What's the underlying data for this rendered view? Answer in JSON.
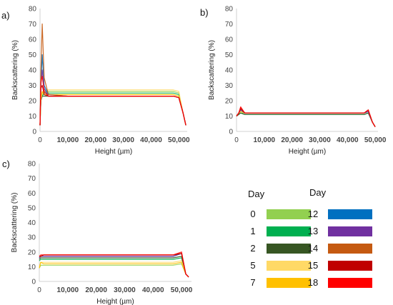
{
  "panels": [
    {
      "label": "a)",
      "ylabel": "Backscattering (%)",
      "xlabel": "Height (µm)"
    },
    {
      "label": "b)",
      "ylabel": "Backscattering (%)",
      "xlabel": "Height (µm)"
    },
    {
      "label": "c)",
      "ylabel": "Backscattering (%)",
      "xlabel": "Height (µm)"
    }
  ],
  "legend": {
    "header_left": "Day",
    "header_right": "Day",
    "entries": [
      {
        "day": "0",
        "color": "#92d050"
      },
      {
        "day": "1",
        "color": "#00b050"
      },
      {
        "day": "2",
        "color": "#375623"
      },
      {
        "day": "5",
        "color": "#ffd966"
      },
      {
        "day": "7",
        "color": "#ffc000"
      },
      {
        "day": "12",
        "color": "#0070c0"
      },
      {
        "day": "13",
        "color": "#7030a0"
      },
      {
        "day": "14",
        "color": "#c55a11"
      },
      {
        "day": "15",
        "color": "#c00000"
      },
      {
        "day": "18",
        "color": "#ff0000"
      }
    ]
  },
  "chart_data": [
    {
      "type": "line",
      "title": "a)",
      "xlabel": "Height (µm)",
      "ylabel": "Backscattering (%)",
      "xlim": [
        0,
        53000
      ],
      "ylim": [
        0,
        80
      ],
      "yticks": [
        0,
        10,
        20,
        30,
        40,
        50,
        60,
        70,
        80
      ],
      "xticks": [
        0,
        10000,
        20000,
        30000,
        40000,
        50000
      ],
      "xtick_labels": [
        "0",
        "10,000",
        "20,000",
        "30,000",
        "40,000",
        "50,000"
      ],
      "grid": false,
      "series": [
        {
          "name": "0",
          "color": "#92d050",
          "x": [
            0,
            300,
            800,
            1500,
            3000,
            10000,
            20000,
            30000,
            40000,
            48000,
            50000,
            51500,
            52500
          ],
          "y": [
            4,
            20,
            24,
            26,
            26,
            26,
            26,
            26,
            26,
            26,
            25,
            12,
            4
          ]
        },
        {
          "name": "1",
          "color": "#00b050",
          "x": [
            0,
            300,
            800,
            1500,
            3000,
            10000,
            20000,
            30000,
            40000,
            48000,
            50000,
            51500,
            52500
          ],
          "y": [
            4,
            20,
            23,
            25,
            25,
            25,
            25,
            25,
            25,
            25,
            24,
            12,
            4
          ]
        },
        {
          "name": "2",
          "color": "#375623",
          "x": [
            0,
            300,
            800,
            1500,
            3000,
            10000,
            20000,
            30000,
            40000,
            48000,
            50000,
            51500,
            52500
          ],
          "y": [
            4,
            20,
            23,
            23,
            23,
            23,
            23,
            23,
            23,
            23,
            22,
            12,
            4
          ]
        },
        {
          "name": "5",
          "color": "#ffd966",
          "x": [
            0,
            300,
            800,
            1500,
            3000,
            10000,
            20000,
            30000,
            40000,
            48000,
            50000,
            51500,
            52500
          ],
          "y": [
            4,
            20,
            25,
            27,
            27,
            27,
            27,
            27,
            27,
            27,
            26,
            12,
            4
          ]
        },
        {
          "name": "7",
          "color": "#ffc000",
          "x": [
            0,
            300,
            800,
            1500,
            3000,
            10000,
            20000,
            30000,
            40000,
            48000,
            50000,
            51500,
            52500
          ],
          "y": [
            4,
            22,
            26,
            24,
            24,
            24,
            24,
            24,
            24,
            24,
            23,
            12,
            4
          ]
        },
        {
          "name": "12",
          "color": "#0070c0",
          "x": [
            0,
            300,
            800,
            1500,
            3000,
            10000,
            20000,
            30000,
            40000,
            48000,
            50000,
            51500,
            52500
          ],
          "y": [
            4,
            30,
            50,
            30,
            24,
            23,
            23,
            23,
            23,
            23,
            22,
            12,
            4
          ]
        },
        {
          "name": "13",
          "color": "#7030a0",
          "x": [
            0,
            300,
            800,
            1500,
            3000,
            10000,
            20000,
            30000,
            40000,
            48000,
            50000,
            51500,
            52500
          ],
          "y": [
            4,
            30,
            40,
            28,
            23,
            23,
            23,
            23,
            23,
            23,
            22,
            12,
            4
          ]
        },
        {
          "name": "14",
          "color": "#c55a11",
          "x": [
            0,
            300,
            800,
            1500,
            3000,
            10000,
            20000,
            30000,
            40000,
            48000,
            50000,
            51500,
            52500
          ],
          "y": [
            4,
            40,
            70,
            35,
            24,
            23,
            23,
            23,
            23,
            23,
            22,
            12,
            4
          ]
        },
        {
          "name": "15",
          "color": "#c00000",
          "x": [
            0,
            300,
            800,
            1500,
            3000,
            10000,
            20000,
            30000,
            40000,
            48000,
            50000,
            51500,
            52500
          ],
          "y": [
            4,
            28,
            30,
            24,
            23,
            23,
            23,
            23,
            23,
            23,
            22,
            12,
            4
          ]
        },
        {
          "name": "18",
          "color": "#ff0000",
          "x": [
            0,
            300,
            800,
            1500,
            3000,
            10000,
            20000,
            30000,
            40000,
            48000,
            50000,
            51500,
            52500
          ],
          "y": [
            4,
            32,
            36,
            26,
            23,
            23,
            23,
            23,
            23,
            23,
            22,
            12,
            4
          ]
        }
      ]
    },
    {
      "type": "line",
      "title": "b)",
      "xlabel": "Height (µm)",
      "ylabel": "Backscattering (%)",
      "xlim": [
        0,
        51000
      ],
      "ylim": [
        0,
        80
      ],
      "yticks": [
        0,
        10,
        20,
        30,
        40,
        50,
        60,
        70,
        80
      ],
      "xticks": [
        0,
        10000,
        20000,
        30000,
        40000,
        50000
      ],
      "xtick_labels": [
        "0",
        "10,000",
        "20,000",
        "30,000",
        "40,000",
        "50,000"
      ],
      "grid": false,
      "series": [
        {
          "name": "0",
          "color": "#92d050",
          "x": [
            0,
            800,
            1500,
            3000,
            10000,
            20000,
            30000,
            40000,
            46000,
            47500,
            49000,
            50000
          ],
          "y": [
            10,
            12,
            12,
            12,
            12,
            12,
            12,
            12,
            12,
            13,
            6,
            3
          ]
        },
        {
          "name": "1",
          "color": "#00b050",
          "x": [
            0,
            800,
            1500,
            3000,
            10000,
            20000,
            30000,
            40000,
            46000,
            47500,
            49000,
            50000
          ],
          "y": [
            10,
            11,
            12,
            11,
            11,
            11,
            11,
            11,
            11,
            12,
            6,
            3
          ]
        },
        {
          "name": "2",
          "color": "#375623",
          "x": [
            0,
            800,
            1500,
            3000,
            10000,
            20000,
            30000,
            40000,
            46000,
            47500,
            49000,
            50000
          ],
          "y": [
            10,
            11,
            12,
            11,
            11,
            11,
            11,
            11,
            11,
            12,
            6,
            3
          ]
        },
        {
          "name": "5",
          "color": "#ffd966",
          "x": [
            0,
            800,
            1500,
            3000,
            10000,
            20000,
            30000,
            40000,
            46000,
            47500,
            49000,
            50000
          ],
          "y": [
            10,
            12,
            13,
            12,
            12,
            12,
            12,
            12,
            12,
            13,
            6,
            3
          ]
        },
        {
          "name": "7",
          "color": "#ffc000",
          "x": [
            0,
            800,
            1500,
            3000,
            10000,
            20000,
            30000,
            40000,
            46000,
            47500,
            49000,
            50000
          ],
          "y": [
            10,
            12,
            13,
            12,
            12,
            12,
            12,
            12,
            12,
            13,
            6,
            3
          ]
        },
        {
          "name": "12",
          "color": "#0070c0",
          "x": [
            0,
            800,
            1500,
            3000,
            10000,
            20000,
            30000,
            40000,
            46000,
            47500,
            49000,
            50000
          ],
          "y": [
            10,
            12,
            14,
            12,
            12,
            12,
            12,
            12,
            12,
            13,
            6,
            3
          ]
        },
        {
          "name": "13",
          "color": "#7030a0",
          "x": [
            0,
            800,
            1500,
            3000,
            10000,
            20000,
            30000,
            40000,
            46000,
            47500,
            49000,
            50000
          ],
          "y": [
            10,
            12,
            14,
            12,
            12,
            12,
            12,
            12,
            12,
            13,
            6,
            3
          ]
        },
        {
          "name": "14",
          "color": "#c55a11",
          "x": [
            0,
            800,
            1500,
            3000,
            10000,
            20000,
            30000,
            40000,
            46000,
            47500,
            49000,
            50000
          ],
          "y": [
            10,
            12,
            15,
            12,
            12,
            12,
            12,
            12,
            12,
            14,
            6,
            3
          ]
        },
        {
          "name": "15",
          "color": "#c00000",
          "x": [
            0,
            800,
            1500,
            3000,
            10000,
            20000,
            30000,
            40000,
            46000,
            47500,
            49000,
            50000
          ],
          "y": [
            10,
            12,
            15,
            12,
            12,
            12,
            12,
            12,
            12,
            14,
            6,
            3
          ]
        },
        {
          "name": "18",
          "color": "#ff0000",
          "x": [
            0,
            800,
            1500,
            3000,
            10000,
            20000,
            30000,
            40000,
            46000,
            47500,
            49000,
            50000
          ],
          "y": [
            10,
            12,
            16,
            12,
            12,
            12,
            12,
            12,
            12,
            14,
            6,
            3
          ]
        }
      ]
    },
    {
      "type": "line",
      "title": "c)",
      "xlabel": "Height (µm)",
      "ylabel": "Backscattering (%)",
      "xlim": [
        0,
        53500
      ],
      "ylim": [
        0,
        80
      ],
      "yticks": [
        0,
        10,
        20,
        30,
        40,
        50,
        60,
        70,
        80
      ],
      "xticks": [
        0,
        10000,
        20000,
        30000,
        40000,
        50000
      ],
      "xtick_labels": [
        "0",
        "10,000",
        "20,000",
        "30,000",
        "40,000",
        "50,000"
      ],
      "grid": false,
      "series": [
        {
          "name": "0",
          "color": "#92d050",
          "x": [
            0,
            500,
            1500,
            3000,
            10000,
            20000,
            30000,
            40000,
            47000,
            50000,
            51500,
            52500
          ],
          "y": [
            9,
            11,
            11,
            11,
            11,
            11,
            11,
            11,
            11,
            12,
            5,
            3
          ]
        },
        {
          "name": "1",
          "color": "#00b050",
          "x": [
            0,
            500,
            1500,
            3000,
            10000,
            20000,
            30000,
            40000,
            47000,
            50000,
            51500,
            52500
          ],
          "y": [
            14,
            15,
            15,
            15,
            15,
            15,
            15,
            15,
            15,
            16,
            5,
            3
          ]
        },
        {
          "name": "2",
          "color": "#375623",
          "x": [
            0,
            500,
            1500,
            3000,
            10000,
            20000,
            30000,
            40000,
            47000,
            50000,
            51500,
            52500
          ],
          "y": [
            15,
            16,
            16,
            16,
            16,
            16,
            16,
            16,
            16,
            17,
            5,
            3
          ]
        },
        {
          "name": "5",
          "color": "#ffd966",
          "x": [
            0,
            500,
            1500,
            3000,
            10000,
            20000,
            30000,
            40000,
            47000,
            50000,
            51500,
            52500
          ],
          "y": [
            10,
            13,
            13,
            13,
            13,
            13,
            13,
            13,
            13,
            14,
            5,
            3
          ]
        },
        {
          "name": "7",
          "color": "#ffc000",
          "x": [
            0,
            500,
            1500,
            3000,
            10000,
            20000,
            30000,
            40000,
            47000,
            50000,
            51500,
            52500
          ],
          "y": [
            9,
            13,
            12,
            12,
            12,
            12,
            12,
            12,
            12,
            13,
            5,
            3
          ]
        },
        {
          "name": "12",
          "color": "#0070c0",
          "x": [
            0,
            500,
            1500,
            3000,
            10000,
            20000,
            30000,
            40000,
            47000,
            50000,
            51500,
            52500
          ],
          "y": [
            16,
            17,
            17,
            17,
            17,
            17,
            17,
            17,
            17,
            19,
            5,
            3
          ]
        },
        {
          "name": "13",
          "color": "#7030a0",
          "x": [
            0,
            500,
            1500,
            3000,
            10000,
            20000,
            30000,
            40000,
            47000,
            50000,
            51500,
            52500
          ],
          "y": [
            16,
            17,
            17,
            17,
            17,
            17,
            17,
            17,
            17,
            19,
            5,
            3
          ]
        },
        {
          "name": "14",
          "color": "#c55a11",
          "x": [
            0,
            500,
            1500,
            3000,
            10000,
            20000,
            30000,
            40000,
            47000,
            50000,
            51500,
            52500
          ],
          "y": [
            17,
            17,
            18,
            18,
            18,
            18,
            18,
            18,
            18,
            19,
            5,
            3
          ]
        },
        {
          "name": "15",
          "color": "#c00000",
          "x": [
            0,
            500,
            1500,
            3000,
            10000,
            20000,
            30000,
            40000,
            47000,
            50000,
            51500,
            52500
          ],
          "y": [
            17,
            17,
            18,
            18,
            18,
            18,
            18,
            18,
            18,
            19,
            5,
            3
          ]
        },
        {
          "name": "18",
          "color": "#ff0000",
          "x": [
            0,
            500,
            1500,
            3000,
            10000,
            20000,
            30000,
            40000,
            47000,
            50000,
            51500,
            52500
          ],
          "y": [
            17,
            18,
            18,
            18,
            18,
            18,
            18,
            18,
            18,
            20,
            5,
            3
          ]
        }
      ]
    }
  ]
}
